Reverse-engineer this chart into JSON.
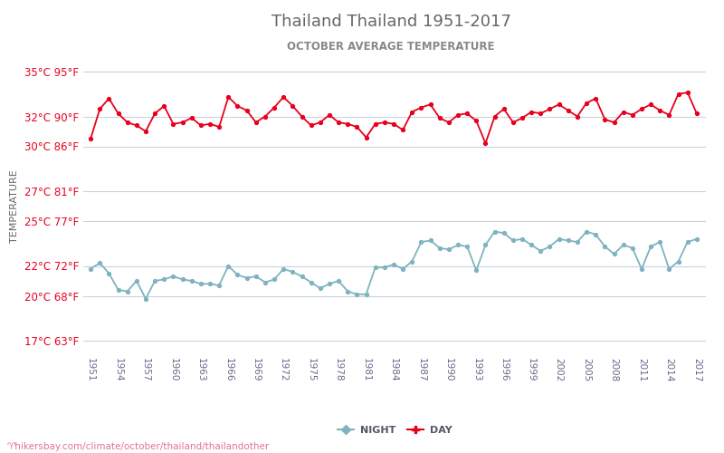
{
  "title": "Thailand Thailand 1951-2017",
  "subtitle": "OCTOBER AVERAGE TEMPERATURE",
  "ylabel": "TEMPERATURE",
  "watermark": "♈hikersbay.com/climate/october/thailand/thailandother",
  "years": [
    1951,
    1952,
    1953,
    1954,
    1955,
    1956,
    1957,
    1958,
    1959,
    1960,
    1961,
    1962,
    1963,
    1964,
    1965,
    1966,
    1967,
    1968,
    1969,
    1970,
    1971,
    1972,
    1973,
    1974,
    1975,
    1976,
    1977,
    1978,
    1979,
    1980,
    1981,
    1982,
    1983,
    1984,
    1985,
    1986,
    1987,
    1988,
    1989,
    1990,
    1991,
    1992,
    1993,
    1994,
    1995,
    1996,
    1997,
    1998,
    1999,
    2000,
    2001,
    2002,
    2003,
    2004,
    2005,
    2006,
    2007,
    2008,
    2009,
    2010,
    2011,
    2012,
    2013,
    2014,
    2015,
    2016,
    2017
  ],
  "day_temps": [
    30.5,
    32.5,
    33.2,
    32.2,
    31.6,
    31.4,
    31.0,
    32.2,
    32.7,
    31.5,
    31.6,
    31.9,
    31.4,
    31.5,
    31.3,
    33.3,
    32.7,
    32.4,
    31.6,
    32.0,
    32.6,
    33.3,
    32.7,
    32.0,
    31.4,
    31.6,
    32.1,
    31.6,
    31.5,
    31.3,
    30.6,
    31.5,
    31.6,
    31.5,
    31.1,
    32.3,
    32.6,
    32.8,
    31.9,
    31.6,
    32.1,
    32.2,
    31.7,
    30.2,
    32.0,
    32.5,
    31.6,
    31.9,
    32.3,
    32.2,
    32.5,
    32.8,
    32.4,
    32.0,
    32.9,
    33.2,
    31.8,
    31.6,
    32.3,
    32.1,
    32.5,
    32.8,
    32.4,
    32.1,
    33.5,
    33.6,
    32.2
  ],
  "night_temps": [
    21.8,
    22.2,
    21.5,
    20.4,
    20.3,
    21.0,
    19.8,
    21.0,
    21.1,
    21.3,
    21.1,
    21.0,
    20.8,
    20.8,
    20.7,
    22.0,
    21.4,
    21.2,
    21.3,
    20.9,
    21.1,
    21.8,
    21.6,
    21.3,
    20.9,
    20.5,
    20.8,
    21.0,
    20.3,
    20.1,
    20.1,
    21.9,
    21.9,
    22.1,
    21.8,
    22.3,
    23.6,
    23.7,
    23.2,
    23.1,
    23.4,
    23.3,
    21.7,
    23.4,
    24.3,
    24.2,
    23.7,
    23.8,
    23.4,
    23.0,
    23.3,
    23.8,
    23.7,
    23.6,
    24.3,
    24.1,
    23.3,
    22.8,
    23.4,
    23.2,
    21.8,
    23.3,
    23.6,
    21.8,
    22.3,
    23.6,
    23.8
  ],
  "yticks_c": [
    17,
    20,
    22,
    25,
    27,
    30,
    32,
    35
  ],
  "yticks_f": [
    63,
    68,
    72,
    77,
    81,
    86,
    90,
    95
  ],
  "xtick_years": [
    1951,
    1954,
    1957,
    1960,
    1963,
    1966,
    1969,
    1972,
    1975,
    1978,
    1981,
    1984,
    1987,
    1990,
    1993,
    1996,
    1999,
    2002,
    2005,
    2008,
    2011,
    2014,
    2017
  ],
  "day_color": "#e8001e",
  "night_color": "#7fb3c0",
  "grid_color": "#c8d4dc",
  "title_color": "#666666",
  "subtitle_color": "#888888",
  "label_color": "#e8001e",
  "ylabel_color": "#666666",
  "bg_color": "#ffffff",
  "ylim": [
    16,
    36
  ],
  "legend_night_label": "NIGHT",
  "legend_day_label": "DAY",
  "watermark_color": "#e87090"
}
